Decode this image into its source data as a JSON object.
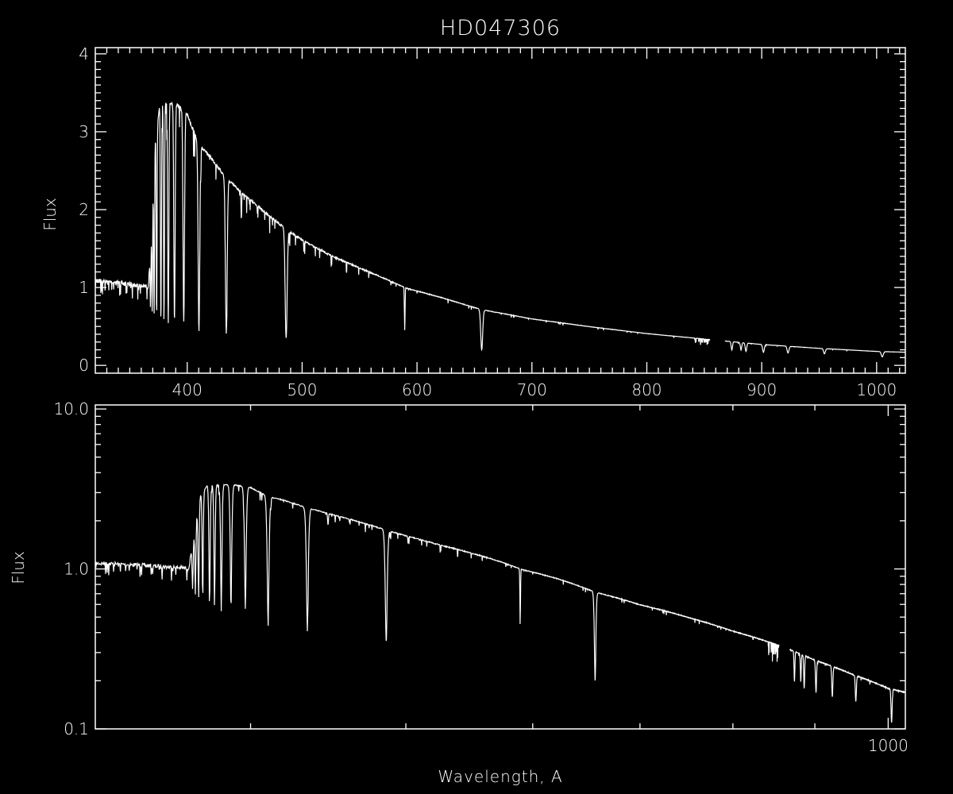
{
  "chart_data": [
    {
      "type": "line",
      "title": "HD047306",
      "xlabel": "",
      "ylabel": "Flux",
      "xlim": [
        320,
        1025
      ],
      "ylim": [
        -0.1,
        4.08
      ],
      "xscale": "linear",
      "yscale": "linear",
      "xticks": [
        400,
        500,
        600,
        700,
        800,
        900,
        1000
      ],
      "xtick_labels": [
        "400",
        "500",
        "600",
        "700",
        "800",
        "900",
        "1000"
      ],
      "yticks": [
        0,
        1,
        2,
        3,
        4
      ],
      "ytick_labels": [
        "0",
        "1",
        "2",
        "3",
        "4"
      ],
      "grid": false,
      "colors": {
        "background": "#000000",
        "line": "#ffffff"
      }
    },
    {
      "type": "line",
      "title": "",
      "xlabel": "Wavelength, A",
      "ylabel": "Flux",
      "xlim": [
        320,
        1025
      ],
      "ylim": [
        0.1,
        10.6
      ],
      "xscale": "log",
      "yscale": "log",
      "xticks": [
        1000
      ],
      "xtick_labels": [
        "1000"
      ],
      "yticks": [
        0.1,
        1.0,
        10.0
      ],
      "ytick_labels": [
        "0.1",
        "1.0",
        "10.0"
      ],
      "grid": false,
      "colors": {
        "background": "#000000",
        "line": "#ffffff"
      }
    }
  ],
  "spectrum": {
    "continuum": [
      [
        320,
        1.12
      ],
      [
        340,
        1.09
      ],
      [
        366,
        1.04
      ],
      [
        369,
        1.6
      ],
      [
        372,
        2.9
      ],
      [
        376,
        3.35
      ],
      [
        380,
        3.42
      ],
      [
        390,
        3.38
      ],
      [
        400,
        3.25
      ],
      [
        410,
        2.85
      ],
      [
        420,
        2.7
      ],
      [
        434,
        2.42
      ],
      [
        450,
        2.2
      ],
      [
        470,
        1.95
      ],
      [
        486,
        1.76
      ],
      [
        500,
        1.62
      ],
      [
        525,
        1.42
      ],
      [
        550,
        1.26
      ],
      [
        575,
        1.1
      ],
      [
        590,
        1.0
      ],
      [
        620,
        0.88
      ],
      [
        656,
        0.72
      ],
      [
        700,
        0.6
      ],
      [
        750,
        0.5
      ],
      [
        800,
        0.41
      ],
      [
        850,
        0.34
      ],
      [
        900,
        0.27
      ],
      [
        950,
        0.22
      ],
      [
        1000,
        0.18
      ],
      [
        1025,
        0.17
      ]
    ],
    "absorption_lines": [
      {
        "x": 368.0,
        "min": 0.75,
        "width": 0.4
      },
      {
        "x": 369.5,
        "min": 0.7,
        "width": 0.4
      },
      {
        "x": 371.2,
        "min": 0.65,
        "width": 0.5
      },
      {
        "x": 373.4,
        "min": 0.62,
        "width": 0.5
      },
      {
        "x": 377.1,
        "min": 0.6,
        "width": 0.6
      },
      {
        "x": 379.8,
        "min": 0.6,
        "width": 0.6
      },
      {
        "x": 383.5,
        "min": 0.58,
        "width": 0.7
      },
      {
        "x": 388.9,
        "min": 0.58,
        "width": 0.8
      },
      {
        "x": 397.0,
        "min": 0.6,
        "width": 0.9
      },
      {
        "x": 410.2,
        "min": 0.47,
        "width": 1.0
      },
      {
        "x": 434.0,
        "min": 0.43,
        "width": 1.1
      },
      {
        "x": 447.1,
        "min": 1.9,
        "width": 0.4
      },
      {
        "x": 486.1,
        "min": 0.35,
        "width": 1.2
      },
      {
        "x": 501.6,
        "min": 1.45,
        "width": 0.3
      },
      {
        "x": 589.3,
        "min": 0.45,
        "width": 0.4
      },
      {
        "x": 656.3,
        "min": 0.2,
        "width": 1.2
      },
      {
        "x": 874.0,
        "min": 0.2,
        "width": 0.8
      },
      {
        "x": 882.0,
        "min": 0.2,
        "width": 0.8
      },
      {
        "x": 886.3,
        "min": 0.18,
        "width": 0.9
      },
      {
        "x": 901.5,
        "min": 0.17,
        "width": 1.0
      },
      {
        "x": 922.9,
        "min": 0.16,
        "width": 1.1
      },
      {
        "x": 954.6,
        "min": 0.15,
        "width": 1.1
      },
      {
        "x": 1004.9,
        "min": 0.11,
        "width": 1.2
      }
    ],
    "gaps": [
      [
        855,
        868
      ]
    ]
  }
}
